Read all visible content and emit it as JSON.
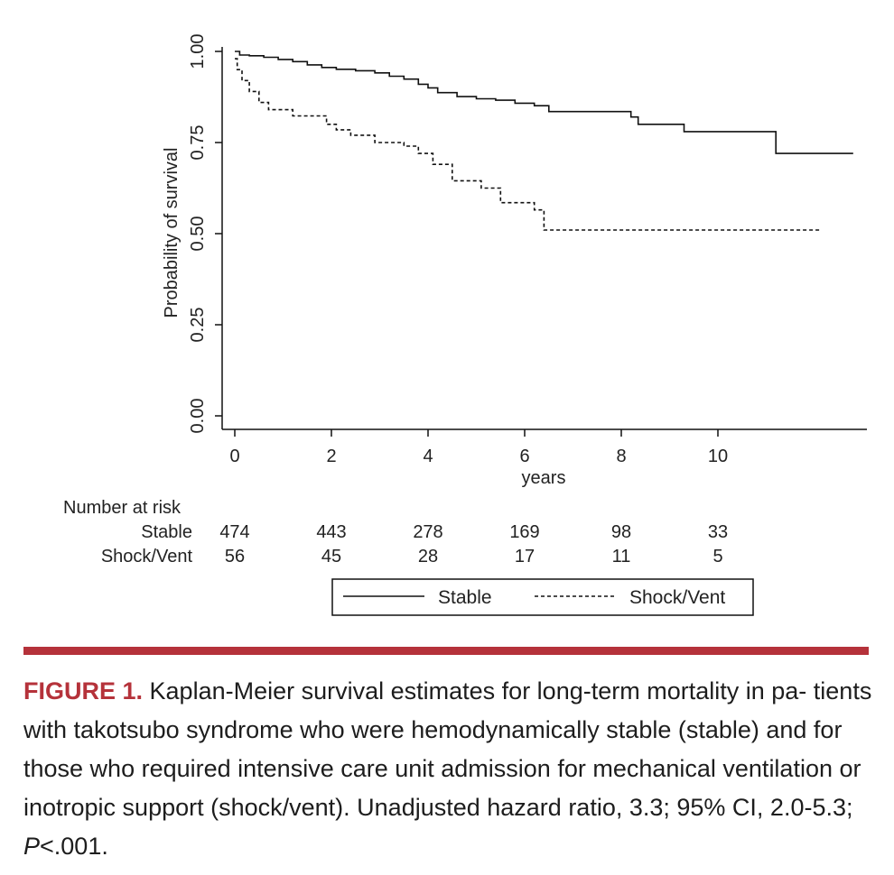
{
  "chart_data": {
    "type": "line",
    "subtype": "kaplan-meier-step",
    "xlabel": "years",
    "ylabel": "Probability of survival",
    "xlim": [
      0,
      13
    ],
    "ylim": [
      0,
      1
    ],
    "xticks": [
      "0",
      "2",
      "4",
      "6",
      "8",
      "10"
    ],
    "yticks": [
      "0.00",
      "0.25",
      "0.50",
      "0.75",
      "1.00"
    ],
    "series": [
      {
        "name": "Stable",
        "style": "solid",
        "x": [
          0,
          0.1,
          0.3,
          0.6,
          0.9,
          1.2,
          1.5,
          1.8,
          2.1,
          2.5,
          2.9,
          3.2,
          3.5,
          3.8,
          4.0,
          4.2,
          4.6,
          5.0,
          5.4,
          5.8,
          6.2,
          6.5,
          7.0,
          8.2,
          8.35,
          9.3,
          11.2,
          12.8
        ],
        "y": [
          1.0,
          0.99,
          0.988,
          0.984,
          0.978,
          0.972,
          0.963,
          0.956,
          0.951,
          0.947,
          0.941,
          0.932,
          0.924,
          0.91,
          0.9,
          0.887,
          0.876,
          0.87,
          0.866,
          0.858,
          0.851,
          0.835,
          0.835,
          0.82,
          0.8,
          0.78,
          0.72,
          0.72
        ]
      },
      {
        "name": "Shock/Vent",
        "style": "dashed",
        "x": [
          0,
          0.05,
          0.15,
          0.3,
          0.5,
          0.7,
          1.2,
          1.9,
          2.1,
          2.4,
          2.9,
          3.5,
          3.8,
          4.1,
          4.5,
          5.1,
          5.5,
          6.2,
          6.4,
          12.1
        ],
        "y": [
          0.98,
          0.95,
          0.92,
          0.89,
          0.86,
          0.84,
          0.823,
          0.8,
          0.785,
          0.77,
          0.75,
          0.74,
          0.72,
          0.69,
          0.645,
          0.625,
          0.585,
          0.565,
          0.51,
          0.51
        ]
      }
    ]
  },
  "risk_table": {
    "title": "Number at risk",
    "times": [
      0,
      2,
      4,
      6,
      8,
      10
    ],
    "rows": [
      {
        "label": "Stable",
        "values": [
          "474",
          "443",
          "278",
          "169",
          "98",
          "33"
        ]
      },
      {
        "label": "Shock/Vent",
        "values": [
          "56",
          "45",
          "28",
          "17",
          "11",
          "5"
        ]
      }
    ]
  },
  "legend": {
    "stable_label": "Stable",
    "shock_label": "Shock/Vent"
  },
  "caption": {
    "head": "FIGURE 1.",
    "text": " Kaplan-Meier survival estimates for long-term mortality in pa- tients with takotsubo syndrome who were hemodynamically stable (stable) and for those who required intensive care unit admission for mechanical ventilation or inotropic support (shock/vent). Unadjusted hazard ratio, 3.3; 95% CI, 2.0-5.3; ",
    "p_label": "P",
    "p_value": "<.001."
  },
  "colors": {
    "accent": "#b5323a",
    "line": "#111111"
  }
}
